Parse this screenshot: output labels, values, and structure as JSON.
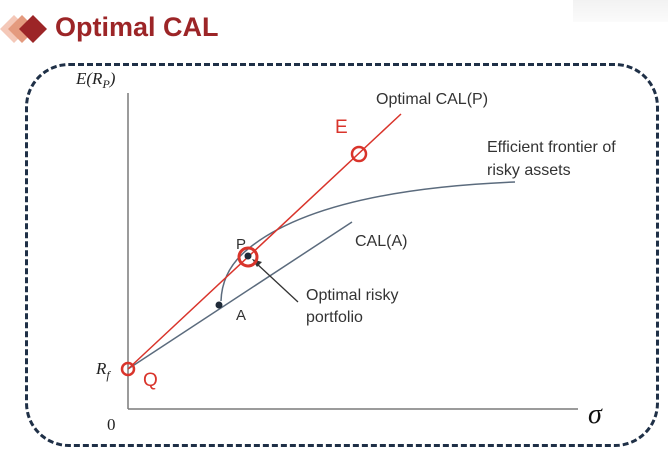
{
  "colors": {
    "accent": "#9c2527",
    "red_line": "#d9342b",
    "gray_line": "#5b6b7d",
    "frame": "#1f3047",
    "text": "#333333"
  },
  "header": {
    "title": "Optimal CAL"
  },
  "diagram": {
    "y_axis_label": {
      "main": "E(R",
      "sub": "P",
      "close": ")"
    },
    "x_axis_label": "σ",
    "origin_label": "0",
    "rf_label": {
      "main": "R",
      "sub": "f"
    },
    "point_q_label": "Q",
    "point_e_label": "E",
    "point_p_label": "P",
    "point_a_label": "A",
    "optimal_cal_label": "Optimal CAL(P)",
    "frontier_label_line1": "Efficient frontier of",
    "frontier_label_line2": "risky assets",
    "cal_a_label": "CAL(A)",
    "optimal_portfolio_label_line1": "Optimal risky",
    "optimal_portfolio_label_line2": "portfolio"
  }
}
